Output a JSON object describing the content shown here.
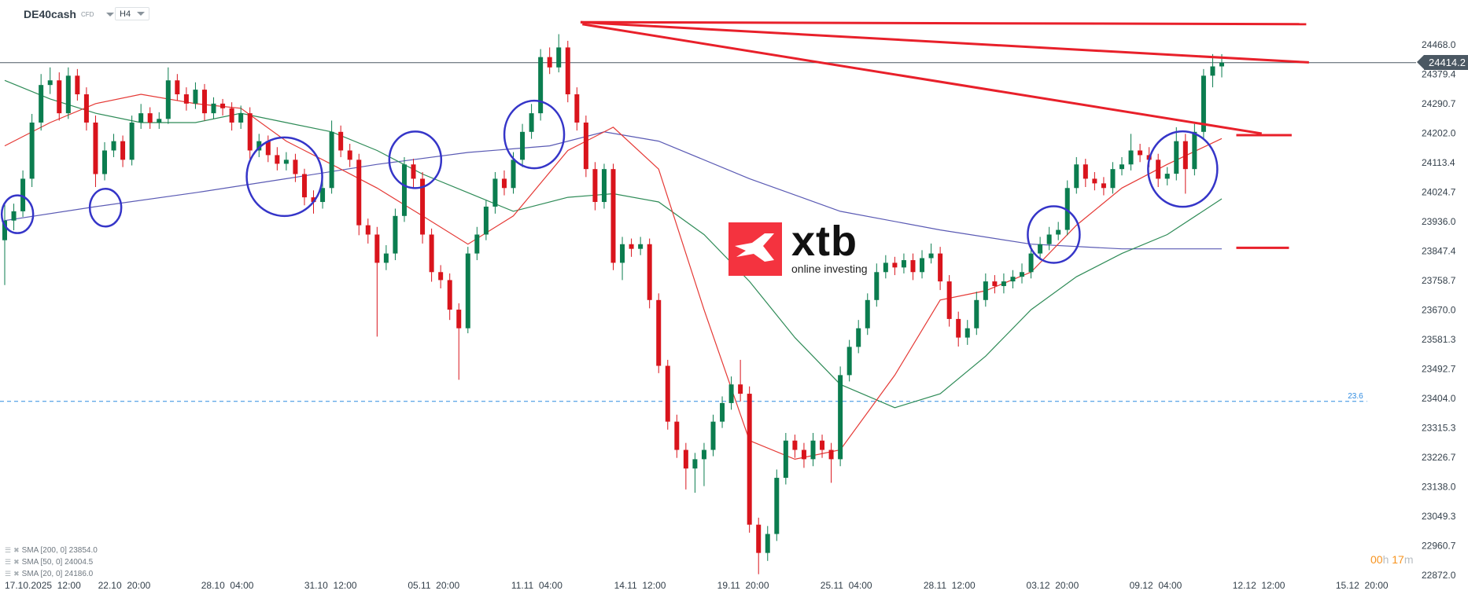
{
  "header": {
    "symbol": "DE40cash",
    "instrument_type": "CFD",
    "timeframe": "H4"
  },
  "indicators": [
    {
      "label": "SMA [200,  0] 23854.0",
      "color": "#5a5ab4"
    },
    {
      "label": "SMA [50,  0] 24004.5",
      "color": "#2e8b57"
    },
    {
      "label": "SMA [20,  0] 24186.0",
      "color": "#e53935"
    }
  ],
  "countdown": {
    "hours": "00",
    "h_unit": "h",
    "minutes": "17",
    "m_unit": "m"
  },
  "logo": {
    "name": "xtb",
    "tagline": "online investing",
    "color": "#f4333f"
  },
  "chart_data": {
    "type": "candlestick",
    "symbol": "DE40cash",
    "timeframe": "H4",
    "current_price": "24414.2",
    "colors": {
      "up": "#0b7d4f",
      "down": "#d9141c",
      "trendline": "#e8202a",
      "circle": "#3535c8",
      "fib": "#2f8be0",
      "price_line": "#4b5863"
    },
    "y_ticks": [
      "24468.0",
      "24379.4",
      "24290.7",
      "24202.0",
      "24113.4",
      "24024.7",
      "23936.0",
      "23847.4",
      "23758.7",
      "23670.0",
      "23581.3",
      "23492.7",
      "23404.0",
      "23315.3",
      "23226.7",
      "23138.0",
      "23049.3",
      "22960.7",
      "22872.0"
    ],
    "x_ticks": [
      "17.10.2025  12:00",
      "22.10  20:00",
      "28.10  04:00",
      "31.10  12:00",
      "05.11  20:00",
      "11.11  04:00",
      "14.11  12:00",
      "19.11  20:00",
      "25.11  04:00",
      "28.11  12:00",
      "03.12  20:00",
      "09.12  04:00",
      "12.12  12:00",
      "15.12  20:00"
    ],
    "candles_ohlc": [
      [
        23880,
        23990,
        23745,
        23939
      ],
      [
        23939,
        23990,
        23910,
        23967
      ],
      [
        23967,
        24090,
        23950,
        24065
      ],
      [
        24065,
        24260,
        24040,
        24234
      ],
      [
        24234,
        24380,
        24210,
        24347
      ],
      [
        24347,
        24400,
        24320,
        24361
      ],
      [
        24361,
        24385,
        24240,
        24262
      ],
      [
        24262,
        24400,
        24245,
        24375
      ],
      [
        24375,
        24395,
        24300,
        24319
      ],
      [
        24319,
        24340,
        24210,
        24234
      ],
      [
        24234,
        24255,
        24040,
        24079
      ],
      [
        24079,
        24175,
        24060,
        24150
      ],
      [
        24150,
        24200,
        24130,
        24178
      ],
      [
        24178,
        24195,
        24100,
        24122
      ],
      [
        24122,
        24255,
        24105,
        24234
      ],
      [
        24234,
        24290,
        24215,
        24262
      ],
      [
        24262,
        24280,
        24215,
        24234
      ],
      [
        24234,
        24265,
        24215,
        24245
      ],
      [
        24245,
        24400,
        24230,
        24361
      ],
      [
        24361,
        24380,
        24300,
        24319
      ],
      [
        24319,
        24340,
        24270,
        24291
      ],
      [
        24291,
        24355,
        24275,
        24333
      ],
      [
        24333,
        24350,
        24240,
        24262
      ],
      [
        24262,
        24310,
        24245,
        24291
      ],
      [
        24291,
        24305,
        24255,
        24277
      ],
      [
        24277,
        24295,
        24210,
        24234
      ],
      [
        24234,
        24285,
        24215,
        24262
      ],
      [
        24262,
        24280,
        24125,
        24150
      ],
      [
        24150,
        24200,
        24130,
        24178
      ],
      [
        24178,
        24195,
        24115,
        24136
      ],
      [
        24136,
        24160,
        24090,
        24110
      ],
      [
        24110,
        24145,
        24090,
        24122
      ],
      [
        24122,
        24140,
        24055,
        24079
      ],
      [
        24079,
        24095,
        23985,
        24009
      ],
      [
        24009,
        24030,
        23960,
        23995
      ],
      [
        23995,
        24060,
        23975,
        24037
      ],
      [
        24037,
        24240,
        24020,
        24206
      ],
      [
        24206,
        24225,
        24130,
        24150
      ],
      [
        24150,
        24170,
        24100,
        24122
      ],
      [
        24122,
        24140,
        23895,
        23925
      ],
      [
        23925,
        23945,
        23870,
        23897
      ],
      [
        23897,
        23920,
        23590,
        23812
      ],
      [
        23812,
        23865,
        23790,
        23840
      ],
      [
        23840,
        23975,
        23820,
        23953
      ],
      [
        23953,
        24130,
        23935,
        24108
      ],
      [
        24108,
        24125,
        24040,
        24065
      ],
      [
        24065,
        24085,
        23870,
        23897
      ],
      [
        23897,
        23915,
        23755,
        23784
      ],
      [
        23784,
        23805,
        23735,
        23760
      ],
      [
        23760,
        23780,
        23640,
        23671
      ],
      [
        23671,
        23690,
        23460,
        23615
      ],
      [
        23615,
        23860,
        23600,
        23840
      ],
      [
        23840,
        23920,
        23820,
        23897
      ],
      [
        23897,
        24000,
        23880,
        23981
      ],
      [
        23981,
        24085,
        23960,
        24065
      ],
      [
        24065,
        24090,
        24015,
        24037
      ],
      [
        24037,
        24145,
        24020,
        24122
      ],
      [
        24122,
        24230,
        24100,
        24206
      ],
      [
        24206,
        24290,
        24185,
        24262
      ],
      [
        24262,
        24455,
        24240,
        24431
      ],
      [
        24431,
        24460,
        24380,
        24400
      ],
      [
        24400,
        24500,
        24385,
        24460
      ],
      [
        24460,
        24480,
        24295,
        24319
      ],
      [
        24319,
        24340,
        24210,
        24234
      ],
      [
        24234,
        24255,
        24070,
        24094
      ],
      [
        24094,
        24115,
        23970,
        23995
      ],
      [
        23995,
        24110,
        23975,
        24094
      ],
      [
        24094,
        24110,
        23790,
        23812
      ],
      [
        23812,
        23890,
        23760,
        23868
      ],
      [
        23868,
        23885,
        23830,
        23854
      ],
      [
        23854,
        23890,
        23835,
        23868
      ],
      [
        23868,
        23885,
        23675,
        23700
      ],
      [
        23700,
        23720,
        23480,
        23502
      ],
      [
        23502,
        23520,
        23310,
        23334
      ],
      [
        23334,
        23355,
        23225,
        23249
      ],
      [
        23249,
        23270,
        23130,
        23193
      ],
      [
        23193,
        23240,
        23120,
        23221
      ],
      [
        23221,
        23270,
        23140,
        23249
      ],
      [
        23249,
        23355,
        23230,
        23334
      ],
      [
        23334,
        23410,
        23315,
        23390
      ],
      [
        23390,
        23470,
        23370,
        23446
      ],
      [
        23446,
        23520,
        23395,
        23418
      ],
      [
        23418,
        23440,
        23000,
        23024
      ],
      [
        23024,
        23045,
        22875,
        22939
      ],
      [
        22939,
        23020,
        22915,
        22996
      ],
      [
        22996,
        23190,
        22975,
        23165
      ],
      [
        23165,
        23300,
        23145,
        23277
      ],
      [
        23277,
        23295,
        23225,
        23249
      ],
      [
        23249,
        23270,
        23195,
        23221
      ],
      [
        23221,
        23300,
        23200,
        23277
      ],
      [
        23277,
        23295,
        23225,
        23249
      ],
      [
        23249,
        23270,
        23150,
        23221
      ],
      [
        23221,
        23500,
        23200,
        23474
      ],
      [
        23474,
        23580,
        23455,
        23559
      ],
      [
        23559,
        23640,
        23540,
        23615
      ],
      [
        23615,
        23720,
        23595,
        23700
      ],
      [
        23700,
        23810,
        23680,
        23784
      ],
      [
        23784,
        23835,
        23765,
        23812
      ],
      [
        23812,
        23830,
        23775,
        23798
      ],
      [
        23798,
        23840,
        23780,
        23820
      ],
      [
        23820,
        23840,
        23760,
        23784
      ],
      [
        23784,
        23850,
        23765,
        23826
      ],
      [
        23826,
        23870,
        23810,
        23840
      ],
      [
        23840,
        23860,
        23730,
        23756
      ],
      [
        23756,
        23775,
        23620,
        23643
      ],
      [
        23643,
        23665,
        23560,
        23587
      ],
      [
        23587,
        23640,
        23565,
        23615
      ],
      [
        23615,
        23725,
        23595,
        23700
      ],
      [
        23700,
        23780,
        23680,
        23756
      ],
      [
        23756,
        23775,
        23720,
        23742
      ],
      [
        23742,
        23780,
        23720,
        23756
      ],
      [
        23756,
        23790,
        23735,
        23770
      ],
      [
        23770,
        23810,
        23750,
        23784
      ],
      [
        23784,
        23865,
        23765,
        23840
      ],
      [
        23840,
        23890,
        23820,
        23868
      ],
      [
        23868,
        23920,
        23850,
        23897
      ],
      [
        23897,
        23935,
        23880,
        23911
      ],
      [
        23911,
        24060,
        23895,
        24037
      ],
      [
        24037,
        24130,
        24020,
        24108
      ],
      [
        24108,
        24125,
        24040,
        24065
      ],
      [
        24065,
        24085,
        24030,
        24051
      ],
      [
        24051,
        24070,
        24015,
        24037
      ],
      [
        24037,
        24115,
        24020,
        24094
      ],
      [
        24094,
        24130,
        24075,
        24108
      ],
      [
        24108,
        24200,
        24090,
        24150
      ],
      [
        24150,
        24170,
        24115,
        24136
      ],
      [
        24136,
        24160,
        24100,
        24122
      ],
      [
        24122,
        24140,
        24040,
        24065
      ],
      [
        24065,
        24100,
        24045,
        24080
      ],
      [
        24080,
        24220,
        24060,
        24178
      ],
      [
        24178,
        24200,
        24020,
        24094
      ],
      [
        24094,
        24230,
        24075,
        24206
      ],
      [
        24206,
        24395,
        24185,
        24375
      ],
      [
        24375,
        24440,
        24340,
        24403
      ],
      [
        24403,
        24440,
        24370,
        24414.2
      ]
    ],
    "series": [
      {
        "name": "SMA [200,  0]",
        "color": "#5a5ab4",
        "points": [
          [
            0,
            23939
          ],
          [
            10,
            23981
          ],
          [
            21,
            24023
          ],
          [
            31,
            24065
          ],
          [
            41,
            24108
          ],
          [
            51,
            24144
          ],
          [
            60,
            24164
          ],
          [
            66,
            24206
          ],
          [
            72,
            24178
          ],
          [
            82,
            24065
          ],
          [
            92,
            23967
          ],
          [
            103,
            23911
          ],
          [
            113,
            23868
          ],
          [
            123,
            23854
          ],
          [
            134,
            23854
          ]
        ]
      },
      {
        "name": "SMA [50,  0]",
        "color": "#2e8b57",
        "points": [
          [
            0,
            24361
          ],
          [
            5,
            24305
          ],
          [
            10,
            24262
          ],
          [
            15,
            24234
          ],
          [
            21,
            24234
          ],
          [
            26,
            24262
          ],
          [
            31,
            24234
          ],
          [
            36,
            24206
          ],
          [
            41,
            24150
          ],
          [
            46,
            24079
          ],
          [
            51,
            24023
          ],
          [
            56,
            23967
          ],
          [
            62,
            24009
          ],
          [
            67,
            24020
          ],
          [
            72,
            23995
          ],
          [
            77,
            23897
          ],
          [
            82,
            23756
          ],
          [
            87,
            23587
          ],
          [
            92,
            23446
          ],
          [
            98,
            23376
          ],
          [
            103,
            23418
          ],
          [
            108,
            23531
          ],
          [
            113,
            23671
          ],
          [
            118,
            23770
          ],
          [
            123,
            23840
          ],
          [
            128,
            23897
          ],
          [
            134,
            24004.5
          ]
        ]
      },
      {
        "name": "SMA [20,  0]",
        "color": "#e53935",
        "points": [
          [
            0,
            24164
          ],
          [
            5,
            24234
          ],
          [
            10,
            24291
          ],
          [
            15,
            24319
          ],
          [
            21,
            24291
          ],
          [
            26,
            24277
          ],
          [
            31,
            24178
          ],
          [
            36,
            24108
          ],
          [
            41,
            24037
          ],
          [
            46,
            23953
          ],
          [
            51,
            23868
          ],
          [
            56,
            23953
          ],
          [
            62,
            24150
          ],
          [
            67,
            24220
          ],
          [
            72,
            24094
          ],
          [
            77,
            23671
          ],
          [
            82,
            23277
          ],
          [
            87,
            23221
          ],
          [
            92,
            23249
          ],
          [
            98,
            23474
          ],
          [
            103,
            23700
          ],
          [
            108,
            23728
          ],
          [
            113,
            23784
          ],
          [
            118,
            23925
          ],
          [
            123,
            24037
          ],
          [
            128,
            24108
          ],
          [
            134,
            24186
          ]
        ]
      }
    ],
    "annotations": {
      "trendlines": [
        {
          "from": [
            63.4,
            24536
          ],
          "to": [
            143.3,
            24530
          ]
        },
        {
          "from": [
            63.4,
            24536
          ],
          "to": [
            143.6,
            24415
          ]
        },
        {
          "from": [
            63.6,
            24530
          ],
          "to": [
            138.4,
            24201
          ]
        },
        {
          "from": [
            135.6,
            24196
          ],
          "to": [
            141.7,
            24196
          ]
        },
        {
          "from": [
            135.6,
            23857
          ],
          "to": [
            141.4,
            23857
          ]
        }
      ],
      "circles": [
        [
          1.4,
          23958
        ],
        [
          11.1,
          23978
        ],
        [
          30.8,
          24071
        ],
        [
          45.2,
          24122
        ],
        [
          58.3,
          24198
        ],
        [
          115.5,
          23897
        ],
        [
          129.7,
          24094
        ]
      ],
      "fib_level": {
        "label": "23.6",
        "price": 23395,
        "to_index": 150
      }
    }
  }
}
